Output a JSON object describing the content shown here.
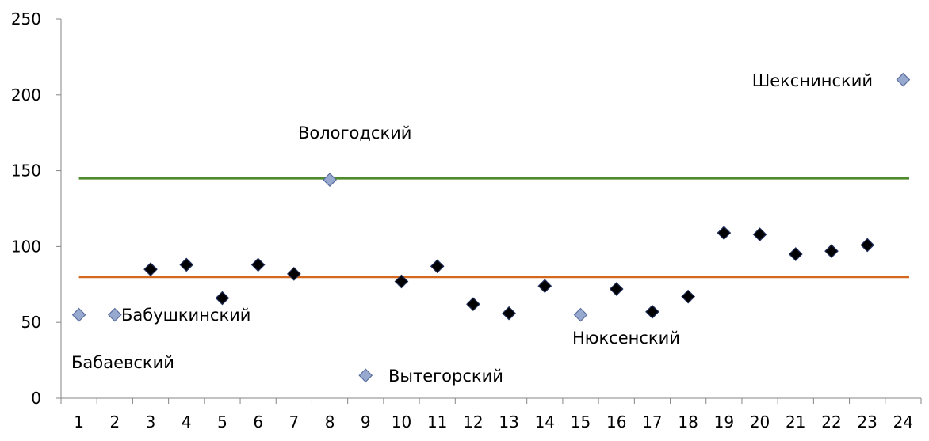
{
  "chart_data": {
    "type": "scatter",
    "title": "",
    "xlabel": "",
    "ylabel": "",
    "xlim": [
      0.5,
      24.5
    ],
    "ylim": [
      0,
      250
    ],
    "x_categories": [
      "1",
      "2",
      "3",
      "4",
      "5",
      "6",
      "7",
      "8",
      "9",
      "10",
      "11",
      "12",
      "13",
      "14",
      "15",
      "16",
      "17",
      "18",
      "19",
      "20",
      "21",
      "22",
      "23",
      "24"
    ],
    "y_ticks": [
      0,
      50,
      100,
      150,
      200,
      250
    ],
    "grid": false,
    "legend": "none",
    "points": [
      {
        "x": 1,
        "y": 55,
        "highlight": true,
        "label": "Бабаевский"
      },
      {
        "x": 2,
        "y": 55,
        "highlight": true,
        "label": "Бабушкинский"
      },
      {
        "x": 3,
        "y": 85,
        "highlight": false,
        "label": ""
      },
      {
        "x": 4,
        "y": 88,
        "highlight": false,
        "label": ""
      },
      {
        "x": 5,
        "y": 66,
        "highlight": false,
        "label": ""
      },
      {
        "x": 6,
        "y": 88,
        "highlight": false,
        "label": ""
      },
      {
        "x": 7,
        "y": 82,
        "highlight": false,
        "label": ""
      },
      {
        "x": 8,
        "y": 144,
        "highlight": true,
        "label": "Вологодский"
      },
      {
        "x": 9,
        "y": 15,
        "highlight": true,
        "label": "Вытегорский"
      },
      {
        "x": 10,
        "y": 77,
        "highlight": false,
        "label": ""
      },
      {
        "x": 11,
        "y": 87,
        "highlight": false,
        "label": ""
      },
      {
        "x": 12,
        "y": 62,
        "highlight": false,
        "label": ""
      },
      {
        "x": 13,
        "y": 56,
        "highlight": false,
        "label": ""
      },
      {
        "x": 14,
        "y": 74,
        "highlight": false,
        "label": ""
      },
      {
        "x": 15,
        "y": 55,
        "highlight": true,
        "label": "Нюксенский"
      },
      {
        "x": 16,
        "y": 72,
        "highlight": false,
        "label": ""
      },
      {
        "x": 17,
        "y": 57,
        "highlight": false,
        "label": ""
      },
      {
        "x": 18,
        "y": 67,
        "highlight": false,
        "label": ""
      },
      {
        "x": 19,
        "y": 109,
        "highlight": false,
        "label": ""
      },
      {
        "x": 20,
        "y": 108,
        "highlight": false,
        "label": ""
      },
      {
        "x": 21,
        "y": 95,
        "highlight": false,
        "label": ""
      },
      {
        "x": 22,
        "y": 97,
        "highlight": false,
        "label": ""
      },
      {
        "x": 23,
        "y": 101,
        "highlight": false,
        "label": ""
      },
      {
        "x": 24,
        "y": 210,
        "highlight": true,
        "label": "Шекснинский"
      }
    ],
    "reference_lines": [
      {
        "y": 145,
        "color": "#4f8a2c"
      },
      {
        "y": 80,
        "color": "#d2691e"
      }
    ],
    "colors": {
      "normal_fill": "#000000",
      "normal_stroke": "#1f2f5a",
      "highlight_fill": "#98a9cf",
      "highlight_stroke": "#5a6e9e",
      "axis": "#868686"
    }
  }
}
